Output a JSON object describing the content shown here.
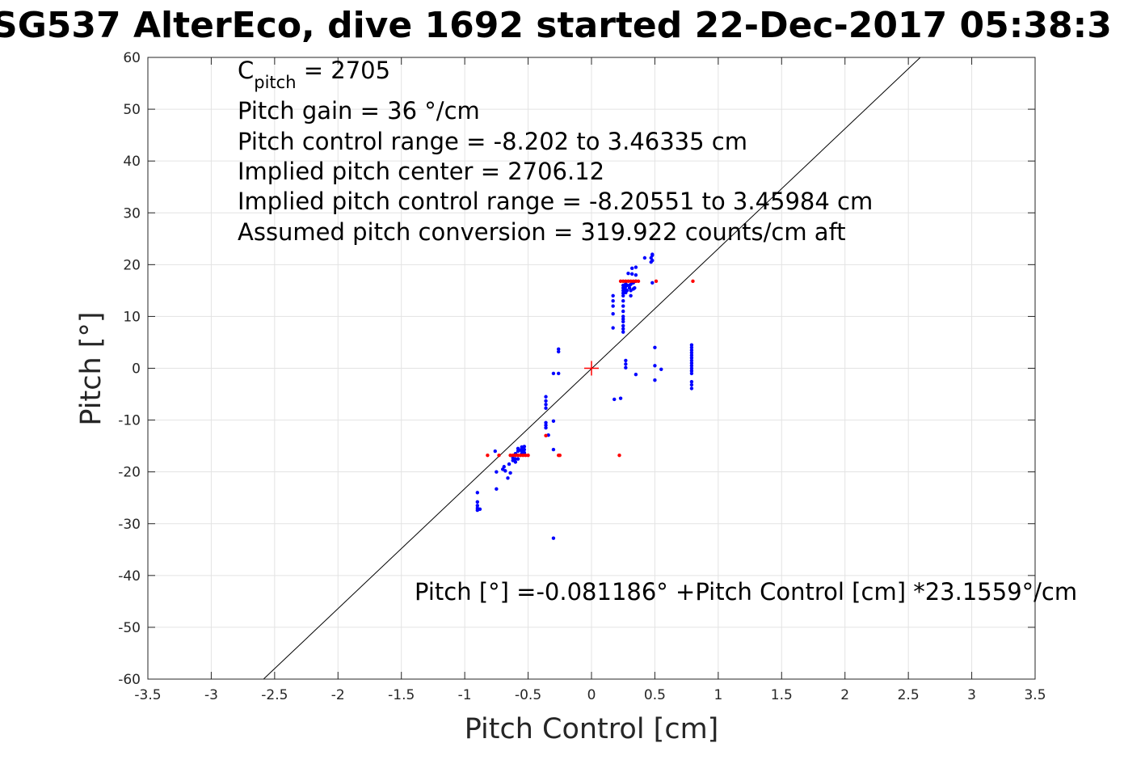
{
  "chart_data": {
    "type": "scatter",
    "title": "SG537 AlterEco, dive 1692 started 22-Dec-2017 05:38:3",
    "xlabel": "Pitch Control [cm]",
    "ylabel": "Pitch [°]",
    "xlim": [
      -3.5,
      3.5
    ],
    "ylim": [
      -60,
      60
    ],
    "xticks": [
      -3.5,
      -3,
      -2.5,
      -2,
      -1.5,
      -1,
      -0.5,
      0,
      0.5,
      1,
      1.5,
      2,
      2.5,
      3,
      3.5
    ],
    "yticks": [
      -60,
      -50,
      -40,
      -30,
      -20,
      -10,
      0,
      10,
      20,
      30,
      40,
      50,
      60
    ],
    "xtick_labels": [
      "-3.5",
      "-3",
      "-2.5",
      "-2",
      "-1.5",
      "-1",
      "-0.5",
      "0",
      "0.5",
      "1",
      "1.5",
      "2",
      "2.5",
      "3",
      "3.5"
    ],
    "ytick_labels": [
      "-60",
      "-50",
      "-40",
      "-30",
      "-20",
      "-10",
      "0",
      "10",
      "20",
      "30",
      "40",
      "50",
      "60"
    ],
    "grid": true,
    "fit_line": {
      "intercept": -0.081186,
      "slope": 23.1559,
      "color": "#000000"
    },
    "center_marker": {
      "x": 0,
      "y": 0,
      "color": "#ff0000"
    },
    "annotations": {
      "c_pitch_main": "C",
      "c_pitch_sub": "pitch",
      "c_pitch_value": " = 2705",
      "lines": [
        "Pitch gain = 36 °/cm",
        "Pitch control range = -8.202 to 3.46335 cm",
        "Implied pitch center = 2706.12",
        "Implied pitch control range = -8.20551 to 3.45984 cm",
        "Assumed pitch conversion = 319.922 counts/cm aft"
      ],
      "fit_text": "Pitch [°] =-0.081186° +Pitch Control [cm] *23.1559°/cm"
    },
    "series": [
      {
        "color": "#0000ff",
        "points": [
          [
            -0.9,
            -24
          ],
          [
            -0.9,
            -25.8
          ],
          [
            -0.9,
            -26.5
          ],
          [
            -0.9,
            -27
          ],
          [
            -0.9,
            -27.4
          ],
          [
            -0.88,
            -27.2
          ],
          [
            -0.76,
            -16
          ],
          [
            -0.75,
            -20
          ],
          [
            -0.75,
            -23.3
          ],
          [
            -0.7,
            -19.5
          ],
          [
            -0.69,
            -19
          ],
          [
            -0.68,
            -19.8
          ],
          [
            -0.66,
            -21.2
          ],
          [
            -0.65,
            -18.5
          ],
          [
            -0.64,
            -20.2
          ],
          [
            -0.62,
            -17.3
          ],
          [
            -0.62,
            -17.8
          ],
          [
            -0.6,
            -16.5
          ],
          [
            -0.6,
            -17.5
          ],
          [
            -0.6,
            -18.1
          ],
          [
            -0.58,
            -15.5
          ],
          [
            -0.58,
            -16
          ],
          [
            -0.58,
            -17.5
          ],
          [
            -0.57,
            -15.8
          ],
          [
            -0.55,
            -15.2
          ],
          [
            -0.55,
            -15.6
          ],
          [
            -0.55,
            -16
          ],
          [
            -0.55,
            -16.5
          ],
          [
            -0.53,
            -15.1
          ],
          [
            -0.53,
            -15.7
          ],
          [
            -0.53,
            -16.3
          ],
          [
            -0.36,
            -5.5
          ],
          [
            -0.36,
            -6.3
          ],
          [
            -0.36,
            -7
          ],
          [
            -0.36,
            -7.7
          ],
          [
            -0.36,
            -10.5
          ],
          [
            -0.36,
            -11
          ],
          [
            -0.36,
            -11.5
          ],
          [
            -0.34,
            -12.9
          ],
          [
            -0.3,
            -1
          ],
          [
            -0.3,
            -10.2
          ],
          [
            -0.3,
            -15.7
          ],
          [
            -0.3,
            -32.8
          ],
          [
            -0.26,
            3.2
          ],
          [
            -0.26,
            3.7
          ],
          [
            -0.26,
            -1
          ],
          [
            0.17,
            7.8
          ],
          [
            0.17,
            10.5
          ],
          [
            0.17,
            12
          ],
          [
            0.17,
            13
          ],
          [
            0.17,
            14
          ],
          [
            0.18,
            -6
          ],
          [
            0.23,
            -5.8
          ],
          [
            0.25,
            7
          ],
          [
            0.25,
            7.6
          ],
          [
            0.25,
            8.2
          ],
          [
            0.25,
            9
          ],
          [
            0.25,
            9.5
          ],
          [
            0.25,
            10
          ],
          [
            0.25,
            11
          ],
          [
            0.25,
            12
          ],
          [
            0.25,
            13
          ],
          [
            0.25,
            14
          ],
          [
            0.25,
            14.5
          ],
          [
            0.25,
            15
          ],
          [
            0.25,
            15.5
          ],
          [
            0.25,
            16
          ],
          [
            0.27,
            16.3
          ],
          [
            0.27,
            15.8
          ],
          [
            0.27,
            15.2
          ],
          [
            0.27,
            14.6
          ],
          [
            0.27,
            0.1
          ],
          [
            0.27,
            0.8
          ],
          [
            0.27,
            1.5
          ],
          [
            0.28,
            15
          ],
          [
            0.28,
            16
          ],
          [
            0.29,
            18.3
          ],
          [
            0.3,
            16
          ],
          [
            0.3,
            15.5
          ],
          [
            0.31,
            14
          ],
          [
            0.31,
            15
          ],
          [
            0.31,
            16.2
          ],
          [
            0.32,
            19.3
          ],
          [
            0.32,
            18.2
          ],
          [
            0.33,
            16.5
          ],
          [
            0.33,
            15.3
          ],
          [
            0.34,
            15.5
          ],
          [
            0.35,
            19.5
          ],
          [
            0.35,
            16.8
          ],
          [
            0.35,
            18
          ],
          [
            0.35,
            -1.2
          ],
          [
            0.42,
            21.3
          ],
          [
            0.47,
            20.5
          ],
          [
            0.47,
            21.3
          ],
          [
            0.48,
            20.8
          ],
          [
            0.48,
            21.8
          ],
          [
            0.48,
            22
          ],
          [
            0.48,
            16.5
          ],
          [
            0.5,
            0.5
          ],
          [
            0.5,
            4
          ],
          [
            0.5,
            -2.3
          ],
          [
            0.55,
            -0.2
          ],
          [
            0.79,
            4.5
          ],
          [
            0.79,
            4
          ],
          [
            0.79,
            3.5
          ],
          [
            0.79,
            3
          ],
          [
            0.79,
            2.5
          ],
          [
            0.79,
            2
          ],
          [
            0.79,
            1.5
          ],
          [
            0.79,
            1
          ],
          [
            0.79,
            0.5
          ],
          [
            0.79,
            0
          ],
          [
            0.79,
            -0.5
          ],
          [
            0.79,
            -1
          ],
          [
            0.79,
            -2.6
          ],
          [
            0.79,
            -3.2
          ],
          [
            0.79,
            -3.9
          ]
        ]
      },
      {
        "color": "#ff0000",
        "points": [
          [
            -0.82,
            -16.8
          ],
          [
            -0.73,
            -16.8
          ],
          [
            -0.64,
            -16.8
          ],
          [
            -0.62,
            -16.8
          ],
          [
            -0.6,
            -16.8
          ],
          [
            -0.58,
            -16.8
          ],
          [
            -0.56,
            -16.8
          ],
          [
            -0.54,
            -16.8
          ],
          [
            -0.52,
            -16.8
          ],
          [
            -0.5,
            -16.8
          ],
          [
            -0.36,
            -13
          ],
          [
            -0.26,
            -16.8
          ],
          [
            -0.25,
            -16.8
          ],
          [
            0.22,
            -16.8
          ],
          [
            0.23,
            16.8
          ],
          [
            0.25,
            16.8
          ],
          [
            0.27,
            16.8
          ],
          [
            0.29,
            16.8
          ],
          [
            0.31,
            16.8
          ],
          [
            0.33,
            16.8
          ],
          [
            0.35,
            16.8
          ],
          [
            0.37,
            16.8
          ],
          [
            0.51,
            16.8
          ],
          [
            0.8,
            16.8
          ]
        ]
      }
    ]
  }
}
